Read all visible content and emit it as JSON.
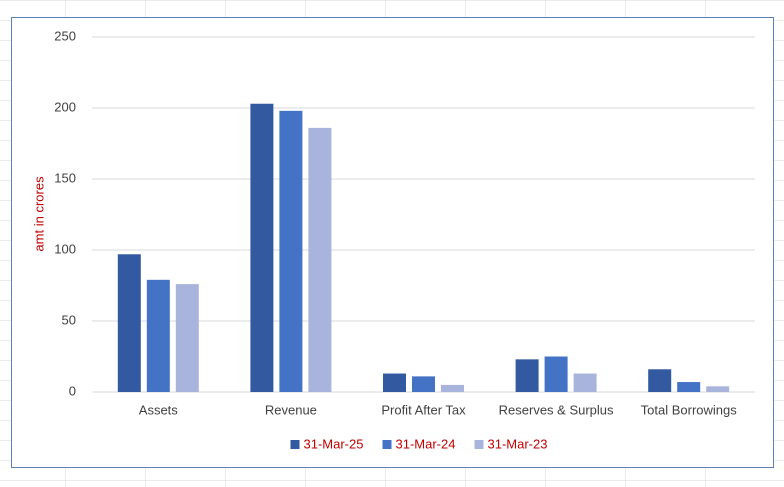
{
  "chart_data": {
    "type": "bar",
    "y_label": "amt in crores",
    "categories": [
      "Assets",
      "Revenue",
      "Profit After Tax",
      "Reserves & Surplus",
      "Total Borrowings"
    ],
    "series": [
      {
        "name": "31-Mar-25",
        "color": "#335aa0",
        "values": [
          97,
          203,
          13,
          23,
          16
        ]
      },
      {
        "name": "31-Mar-24",
        "color": "#4472c4",
        "values": [
          79,
          198,
          11,
          25,
          7
        ]
      },
      {
        "name": "31-Mar-23",
        "color": "#a9b4dc",
        "values": [
          76,
          186,
          5,
          13,
          4
        ]
      }
    ],
    "ylim": [
      0,
      250
    ],
    "yticks": [
      0,
      50,
      100,
      150,
      200,
      250
    ],
    "grid": true,
    "legend": "bottom",
    "label_color": "#c00000"
  }
}
